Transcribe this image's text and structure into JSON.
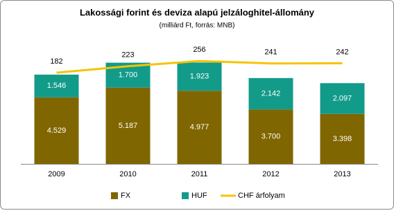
{
  "chart_data": {
    "type": "bar",
    "title": "Lakossági forint és deviza alapú jelzáloghitel-állomány",
    "subtitle": "(milliárd Ft, forrás: MNB)",
    "stacked": true,
    "categories": [
      "2009",
      "2010",
      "2011",
      "2012",
      "2013"
    ],
    "ylim": [
      0,
      8000
    ],
    "y2lim": [
      -400,
      350
    ],
    "series": [
      {
        "name": "FX",
        "color": "#806600",
        "values": [
          4529,
          5187,
          4977,
          3700,
          3398
        ],
        "value_labels": [
          "4.529",
          "5.187",
          "4.977",
          "3.700",
          "3.398"
        ]
      },
      {
        "name": "HUF",
        "color": "#139b8a",
        "values": [
          1546,
          1700,
          1923,
          2142,
          2097
        ],
        "value_labels": [
          "1.546",
          "1.700",
          "1.923",
          "2.142",
          "2.097"
        ]
      },
      {
        "name": "CHF árfolyam",
        "type": "line",
        "axis": "y2",
        "color": "#f5c400",
        "values": [
          182,
          223,
          256,
          241,
          242
        ]
      }
    ],
    "legend": "bottom"
  }
}
